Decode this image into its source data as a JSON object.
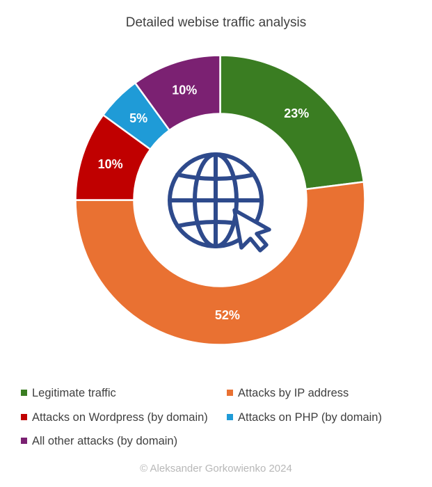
{
  "chart_data": {
    "type": "pie",
    "variant": "donut",
    "title": "Detailed webise traffic analysis",
    "categories": [
      "Legitimate traffic",
      "Attacks by IP address",
      "Attacks on Wordpress (by domain)",
      "Attacks on PHP (by domain)",
      "All other attacks (by domain)"
    ],
    "values": [
      23,
      52,
      10,
      5,
      10
    ],
    "labels": [
      "23%",
      "52%",
      "10%",
      "5%",
      "10%"
    ],
    "colors": [
      "#3a7d22",
      "#e97132",
      "#c00000",
      "#1f9bd7",
      "#7b2172"
    ],
    "legend_position": "bottom",
    "center_icon": "globe-cursor-icon",
    "icon_color": "#2e4a8c"
  },
  "footer": "© Aleksander Gorkowienko 2024"
}
